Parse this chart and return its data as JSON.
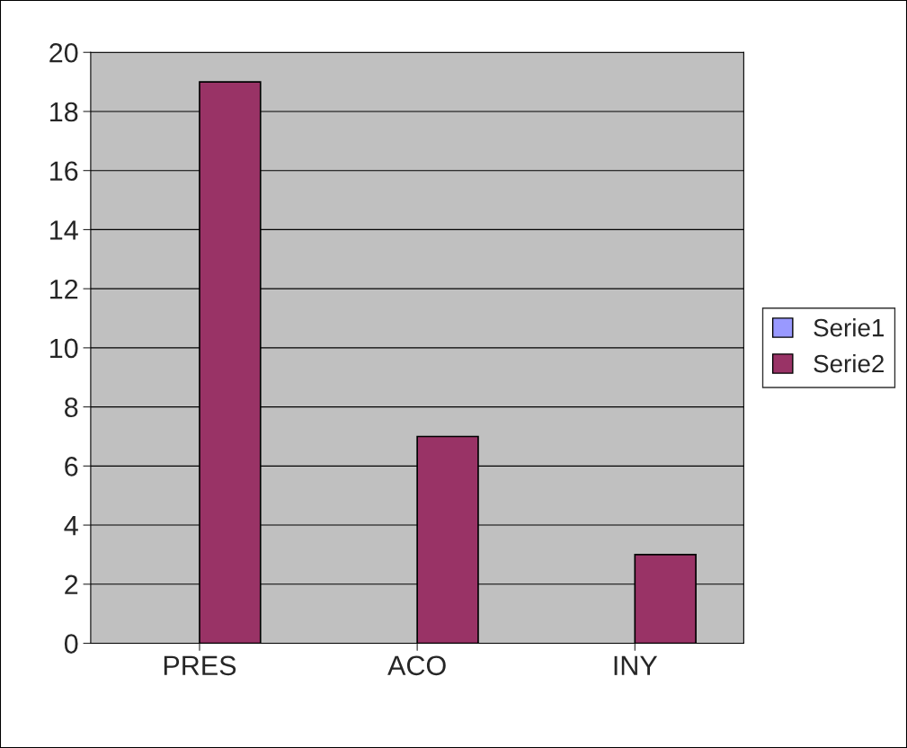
{
  "chart_data": {
    "type": "bar",
    "categories": [
      "PRES",
      "ACO",
      "INY"
    ],
    "series": [
      {
        "name": "Serie1",
        "color": "#9999ff",
        "values": [
          null,
          null,
          null
        ]
      },
      {
        "name": "Serie2",
        "color": "#993366",
        "values": [
          19,
          7,
          3
        ]
      }
    ],
    "ylim": [
      0,
      20
    ],
    "yticks": [
      0,
      2,
      4,
      6,
      8,
      10,
      12,
      14,
      16,
      18,
      20
    ],
    "grid": "y",
    "legend": "right"
  }
}
